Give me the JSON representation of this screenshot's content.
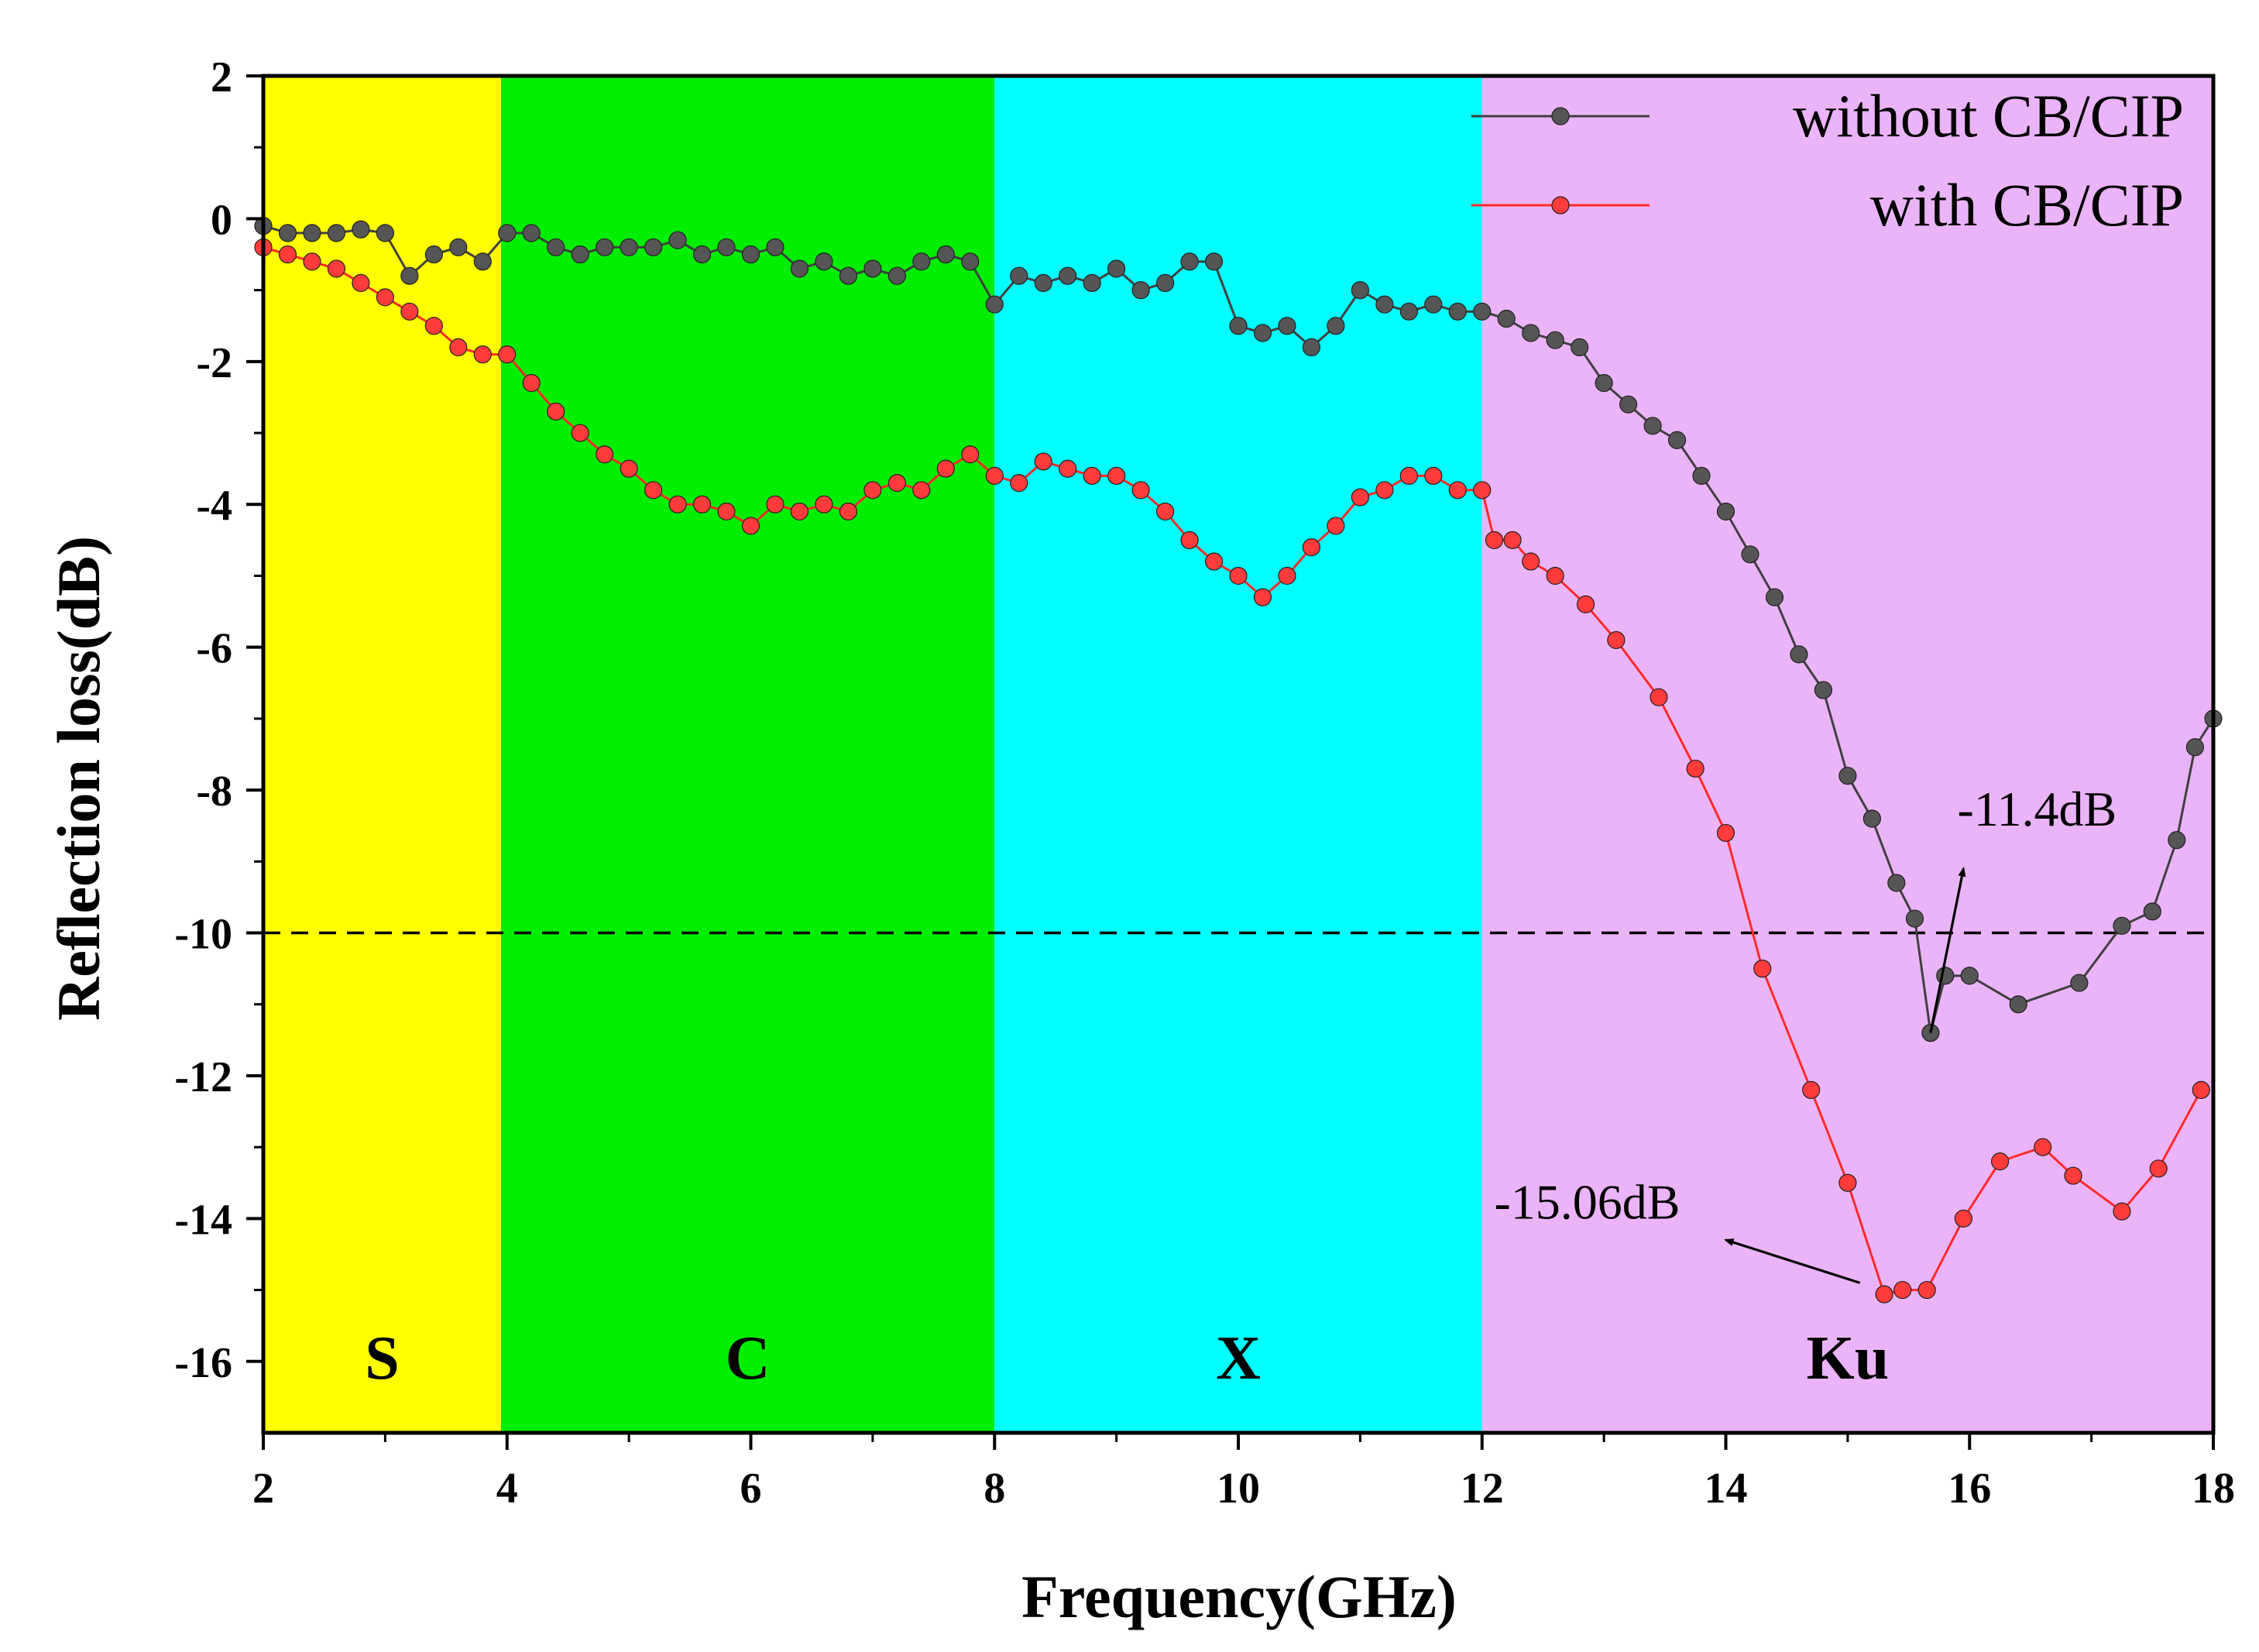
{
  "chart_data": {
    "type": "line",
    "title": "",
    "xlabel": "Frequency(GHz)",
    "ylabel": "Reflection loss(dB)",
    "xlim": [
      2,
      18
    ],
    "ylim": [
      -17,
      2
    ],
    "xticks": [
      2,
      4,
      6,
      8,
      10,
      12,
      14,
      16,
      18
    ],
    "yticks": [
      2,
      0,
      -2,
      -4,
      -6,
      -8,
      -10,
      -12,
      -14,
      -16
    ],
    "grid": false,
    "legend_position": "top-right",
    "reference_line": {
      "y": -10,
      "style": "dashed",
      "color": "#000000"
    },
    "bands": [
      {
        "label": "S",
        "x_start": 2,
        "x_end": 3.95,
        "color": "#ffff00"
      },
      {
        "label": "C",
        "x_start": 3.95,
        "x_end": 8,
        "color": "#00ee00"
      },
      {
        "label": "X",
        "x_start": 8,
        "x_end": 12,
        "color": "#00ffff"
      },
      {
        "label": "Ku",
        "x_start": 12,
        "x_end": 18,
        "color": "#ebb4f8"
      }
    ],
    "series": [
      {
        "name": "without CB/CIP",
        "color": "#404040",
        "marker_color": "#555555",
        "x": [
          2.0,
          2.2,
          2.4,
          2.6,
          2.8,
          3.0,
          3.2,
          3.4,
          3.6,
          3.8,
          4.0,
          4.2,
          4.4,
          4.6,
          4.8,
          5.0,
          5.2,
          5.4,
          5.6,
          5.8,
          6.0,
          6.2,
          6.4,
          6.6,
          6.8,
          7.0,
          7.2,
          7.4,
          7.6,
          7.8,
          8.0,
          8.2,
          8.4,
          8.6,
          8.8,
          9.0,
          9.2,
          9.4,
          9.6,
          9.8,
          10.0,
          10.2,
          10.4,
          10.6,
          10.8,
          11.0,
          11.2,
          11.4,
          11.6,
          11.8,
          12.0,
          12.2,
          12.4,
          12.6,
          12.8,
          13.0,
          13.2,
          13.4,
          13.6,
          13.8,
          14.0,
          14.2,
          14.4,
          14.6,
          14.8,
          15.0,
          15.2,
          15.4,
          15.55,
          15.68,
          15.8,
          16.0,
          16.4,
          16.9,
          17.25,
          17.5,
          17.7,
          17.85,
          18.0
        ],
        "y": [
          -0.1,
          -0.2,
          -0.2,
          -0.2,
          -0.15,
          -0.2,
          -0.8,
          -0.5,
          -0.4,
          -0.6,
          -0.2,
          -0.2,
          -0.4,
          -0.5,
          -0.4,
          -0.4,
          -0.4,
          -0.3,
          -0.5,
          -0.4,
          -0.5,
          -0.4,
          -0.7,
          -0.6,
          -0.8,
          -0.7,
          -0.8,
          -0.6,
          -0.5,
          -0.6,
          -1.2,
          -0.8,
          -0.9,
          -0.8,
          -0.9,
          -0.7,
          -1.0,
          -0.9,
          -0.6,
          -0.6,
          -1.5,
          -1.6,
          -1.5,
          -1.8,
          -1.5,
          -1.0,
          -1.2,
          -1.3,
          -1.2,
          -1.3,
          -1.3,
          -1.4,
          -1.6,
          -1.7,
          -1.8,
          -2.3,
          -2.6,
          -2.9,
          -3.1,
          -3.6,
          -4.1,
          -4.7,
          -5.3,
          -6.1,
          -6.6,
          -7.8,
          -8.4,
          -9.3,
          -9.8,
          -11.4,
          -10.6,
          -10.6,
          -11.0,
          -10.7,
          -9.9,
          -9.7,
          -8.7,
          -7.4,
          -7.0
        ]
      },
      {
        "name": "with CB/CIP",
        "color": "#ff2a2a",
        "marker_color": "#ff3b3b",
        "x": [
          2.0,
          2.2,
          2.4,
          2.6,
          2.8,
          3.0,
          3.2,
          3.4,
          3.6,
          3.8,
          4.0,
          4.2,
          4.4,
          4.6,
          4.8,
          5.0,
          5.2,
          5.4,
          5.6,
          5.8,
          6.0,
          6.2,
          6.4,
          6.6,
          6.8,
          7.0,
          7.2,
          7.4,
          7.6,
          7.8,
          8.0,
          8.2,
          8.4,
          8.6,
          8.8,
          9.0,
          9.2,
          9.4,
          9.6,
          9.8,
          10.0,
          10.2,
          10.4,
          10.6,
          10.8,
          11.0,
          11.2,
          11.4,
          11.6,
          11.8,
          12.0,
          12.1,
          12.25,
          12.4,
          12.6,
          12.85,
          13.1,
          13.45,
          13.75,
          14.0,
          14.3,
          14.7,
          15.0,
          15.3,
          15.45,
          15.65,
          15.95,
          16.25,
          16.6,
          16.85,
          17.25,
          17.55,
          17.9
        ],
        "y": [
          -0.4,
          -0.5,
          -0.6,
          -0.7,
          -0.9,
          -1.1,
          -1.3,
          -1.5,
          -1.8,
          -1.9,
          -1.9,
          -2.3,
          -2.7,
          -3.0,
          -3.3,
          -3.5,
          -3.8,
          -4.0,
          -4.0,
          -4.1,
          -4.3,
          -4.0,
          -4.1,
          -4.0,
          -4.1,
          -3.8,
          -3.7,
          -3.8,
          -3.5,
          -3.3,
          -3.6,
          -3.7,
          -3.4,
          -3.5,
          -3.6,
          -3.6,
          -3.8,
          -4.1,
          -4.5,
          -4.8,
          -5.0,
          -5.3,
          -5.0,
          -4.6,
          -4.3,
          -3.9,
          -3.8,
          -3.6,
          -3.6,
          -3.8,
          -3.8,
          -4.5,
          -4.5,
          -4.8,
          -5.0,
          -5.4,
          -5.9,
          -6.7,
          -7.7,
          -8.6,
          -10.5,
          -12.2,
          -13.5,
          -15.06,
          -15.0,
          -15.0,
          -14.0,
          -13.2,
          -13.0,
          -13.4,
          -13.9,
          -13.3,
          -12.2
        ]
      }
    ],
    "annotations": [
      {
        "text": "-11.4dB",
        "point": [
          15.68,
          -11.4
        ],
        "text_at": [
          15.9,
          -8.5
        ]
      },
      {
        "text": "-15.06dB",
        "point": [
          15.1,
          -14.9
        ],
        "text_at": [
          12.1,
          -14.0
        ]
      }
    ]
  }
}
